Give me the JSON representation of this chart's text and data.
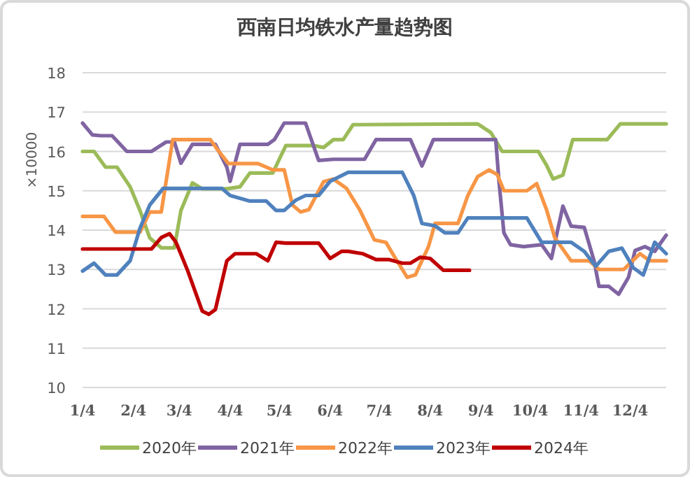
{
  "chart_data": {
    "type": "line",
    "title": "西南日均铁水产量趋势图",
    "ylabel": "×10000",
    "xlim": [
      "--01-04",
      "--12-26"
    ],
    "ylim": [
      10,
      18
    ],
    "yticks": [
      10,
      11,
      12,
      13,
      14,
      15,
      16,
      17,
      18
    ],
    "xticks": [
      {
        "value": "--01-04",
        "label": "1/4"
      },
      {
        "value": "--02-04",
        "label": "2/4"
      },
      {
        "value": "--03-04",
        "label": "3/4"
      },
      {
        "value": "--04-04",
        "label": "4/4"
      },
      {
        "value": "--05-04",
        "label": "5/4"
      },
      {
        "value": "--06-04",
        "label": "6/4"
      },
      {
        "value": "--07-04",
        "label": "7/4"
      },
      {
        "value": "--08-04",
        "label": "8/4"
      },
      {
        "value": "--09-04",
        "label": "9/4"
      },
      {
        "value": "--10-04",
        "label": "10/4"
      },
      {
        "value": "--11-04",
        "label": "11/4"
      },
      {
        "value": "--12-04",
        "label": "12/4"
      }
    ],
    "grid": "y",
    "legend": "bottom",
    "marker": "none",
    "series": [
      {
        "name": "2020年",
        "color": "#9bbb59",
        "x": [
          "--01-04",
          "--01-11",
          "--01-18",
          "--01-25",
          "--02-02",
          "--02-08",
          "--02-14",
          "--02-21",
          "--03-01",
          "--03-05",
          "--03-12",
          "--03-18",
          "--04-02",
          "--04-10",
          "--04-16",
          "--04-30",
          "--05-04",
          "--05-08",
          "--05-25",
          "--05-31",
          "--06-06",
          "--06-12",
          "--06-18",
          "--09-02",
          "--09-10",
          "--09-17",
          "--09-24",
          "--10-09",
          "--10-14",
          "--10-18",
          "--10-24",
          "--10-30",
          "--11-20",
          "--11-28",
          "--12-26"
        ],
        "values": [
          16.0,
          16.0,
          15.6,
          15.6,
          15.1,
          14.5,
          13.8,
          13.55,
          13.55,
          14.5,
          15.2,
          15.05,
          15.05,
          15.1,
          15.45,
          15.45,
          15.8,
          16.15,
          16.15,
          16.1,
          16.3,
          16.3,
          16.68,
          16.7,
          16.48,
          16.0,
          16.0,
          16.0,
          15.65,
          15.3,
          15.4,
          16.3,
          16.3,
          16.7,
          16.7
        ]
      },
      {
        "name": "2021年",
        "color": "#8064a2",
        "x": [
          "--01-04",
          "--01-10",
          "--01-15",
          "--01-22",
          "--01-31",
          "--02-08",
          "--02-15",
          "--02-24",
          "--03-01",
          "--03-05",
          "--03-12",
          "--03-26",
          "--04-02",
          "--04-04",
          "--04-10",
          "--04-27",
          "--05-01",
          "--05-07",
          "--05-20",
          "--05-28",
          "--06-06",
          "--06-25",
          "--07-02",
          "--07-23",
          "--07-30",
          "--08-06",
          "--09-13",
          "--09-15",
          "--09-18",
          "--09-22",
          "--09-30",
          "--10-11",
          "--10-17",
          "--10-24",
          "--10-29",
          "--11-06",
          "--11-12",
          "--11-15",
          "--11-21",
          "--11-27",
          "--12-03",
          "--12-07",
          "--12-13",
          "--12-19",
          "--12-26"
        ],
        "values": [
          16.72,
          16.42,
          16.4,
          16.4,
          16.0,
          16.0,
          16.0,
          16.24,
          16.24,
          15.7,
          16.18,
          16.18,
          15.6,
          15.24,
          16.18,
          16.18,
          16.3,
          16.72,
          16.72,
          15.77,
          15.8,
          15.8,
          16.3,
          16.3,
          15.63,
          16.3,
          16.3,
          15.24,
          13.93,
          13.63,
          13.58,
          13.63,
          13.28,
          14.61,
          14.1,
          14.07,
          13.22,
          12.57,
          12.57,
          12.37,
          12.8,
          13.48,
          13.58,
          13.46,
          13.87
        ]
      },
      {
        "name": "2022年",
        "color": "#f79646",
        "x": [
          "--01-04",
          "--01-17",
          "--01-24",
          "--02-08",
          "--02-14",
          "--02-21",
          "--02-28",
          "--03-23",
          "--03-27",
          "--04-03",
          "--04-21",
          "--04-30",
          "--05-07",
          "--05-12",
          "--05-17",
          "--05-22",
          "--05-31",
          "--06-06",
          "--06-14",
          "--06-22",
          "--07-01",
          "--07-08",
          "--07-13",
          "--07-21",
          "--07-26",
          "--08-03",
          "--08-07",
          "--08-21",
          "--08-27",
          "--09-02",
          "--09-09",
          "--09-14",
          "--09-18",
          "--10-02",
          "--10-08",
          "--10-14",
          "--10-19",
          "--10-29",
          "--11-09",
          "--11-15",
          "--11-30",
          "--12-10",
          "--12-16",
          "--12-26"
        ],
        "values": [
          14.35,
          14.35,
          13.95,
          13.95,
          14.46,
          14.46,
          16.3,
          16.3,
          16.06,
          15.69,
          15.69,
          15.53,
          15.53,
          14.64,
          14.46,
          14.52,
          15.23,
          15.3,
          15.06,
          14.52,
          13.75,
          13.69,
          13.34,
          12.8,
          12.86,
          13.58,
          14.17,
          14.17,
          14.88,
          15.36,
          15.53,
          15.41,
          15.0,
          15.0,
          15.18,
          14.52,
          13.81,
          13.22,
          13.22,
          13.0,
          13.0,
          13.4,
          13.22,
          13.22
        ]
      },
      {
        "name": "2023年",
        "color": "#4f81bd",
        "x": [
          "--01-04",
          "--01-11",
          "--01-18",
          "--01-25",
          "--02-02",
          "--02-08",
          "--02-14",
          "--02-21",
          "--02-22",
          "--03-30",
          "--04-04",
          "--04-16",
          "--04-26",
          "--05-02",
          "--05-07",
          "--05-14",
          "--05-20",
          "--05-28",
          "--06-04",
          "--06-15",
          "--07-18",
          "--07-25",
          "--07-30",
          "--08-07",
          "--08-13",
          "--08-21",
          "--08-27",
          "--10-02",
          "--10-11",
          "--10-29",
          "--11-06",
          "--11-13",
          "--11-21",
          "--11-29",
          "--12-06",
          "--12-12",
          "--12-19",
          "--12-26"
        ],
        "values": [
          12.96,
          13.16,
          12.86,
          12.86,
          13.22,
          14.05,
          14.64,
          15.0,
          15.06,
          15.06,
          14.88,
          14.74,
          14.74,
          14.5,
          14.5,
          14.76,
          14.88,
          14.88,
          15.24,
          15.47,
          15.47,
          14.88,
          14.17,
          14.11,
          13.93,
          13.93,
          14.31,
          14.31,
          13.69,
          13.69,
          13.46,
          13.08,
          13.46,
          13.54,
          13.04,
          12.86,
          13.69,
          13.4
        ]
      },
      {
        "name": "2024年",
        "color": "#c00000",
        "x": [
          "--01-04",
          "--02-15",
          "--02-21",
          "--02-26",
          "--03-02",
          "--03-09",
          "--03-18",
          "--03-22",
          "--03-26",
          "--04-02",
          "--04-07",
          "--04-20",
          "--04-27",
          "--05-02",
          "--05-08",
          "--05-28",
          "--06-04",
          "--06-11",
          "--06-15",
          "--06-24",
          "--07-02",
          "--07-10",
          "--07-18",
          "--07-23",
          "--07-29",
          "--08-04",
          "--08-12",
          "--08-28"
        ],
        "values": [
          13.52,
          13.52,
          13.81,
          13.91,
          13.69,
          12.98,
          11.94,
          11.86,
          11.98,
          13.22,
          13.4,
          13.4,
          13.22,
          13.69,
          13.67,
          13.67,
          13.28,
          13.46,
          13.46,
          13.4,
          13.25,
          13.25,
          13.16,
          13.16,
          13.31,
          13.28,
          12.98,
          12.98
        ]
      }
    ]
  }
}
